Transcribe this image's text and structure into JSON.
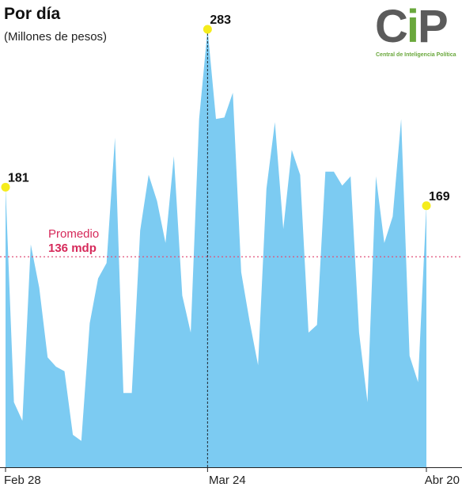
{
  "header": {
    "title": "Por día",
    "subtitle": "(Millones de pesos)"
  },
  "logo": {
    "text": "CIP",
    "tagline": "Central de Inteligencia Política",
    "colors": {
      "gray": "#5b5b5b",
      "green": "#6aa83c"
    }
  },
  "colors": {
    "area": "#7ccbf2",
    "average_line": "#e0507a",
    "highlight_point": "#f5ec1c",
    "axis": "#222222"
  },
  "chart_data": {
    "type": "area",
    "title": "Por día",
    "subtitle": "(Millones de pesos)",
    "x_tick_labels": [
      "Feb 28",
      "Mar 24",
      "Abr 20"
    ],
    "ylim": [
      0,
      283
    ],
    "values": [
      181,
      42,
      30,
      144,
      116,
      71,
      65,
      62,
      21,
      17,
      93,
      122,
      132,
      213,
      48,
      48,
      153,
      189,
      172,
      145,
      201,
      111,
      87,
      225,
      283,
      225,
      226,
      242,
      126,
      94,
      66,
      180,
      223,
      154,
      205,
      189,
      87,
      92,
      191,
      191,
      182,
      188,
      87,
      42,
      188,
      145,
      162,
      225,
      72,
      55,
      169
    ],
    "average": {
      "label": "Promedio",
      "value_label": "136 mdp",
      "value": 136
    },
    "annotations": [
      {
        "index": 0,
        "label": "181"
      },
      {
        "index": 24,
        "label": "283"
      },
      {
        "index": 50,
        "label": "169"
      }
    ],
    "marker_line_index": 24,
    "grid": false
  }
}
